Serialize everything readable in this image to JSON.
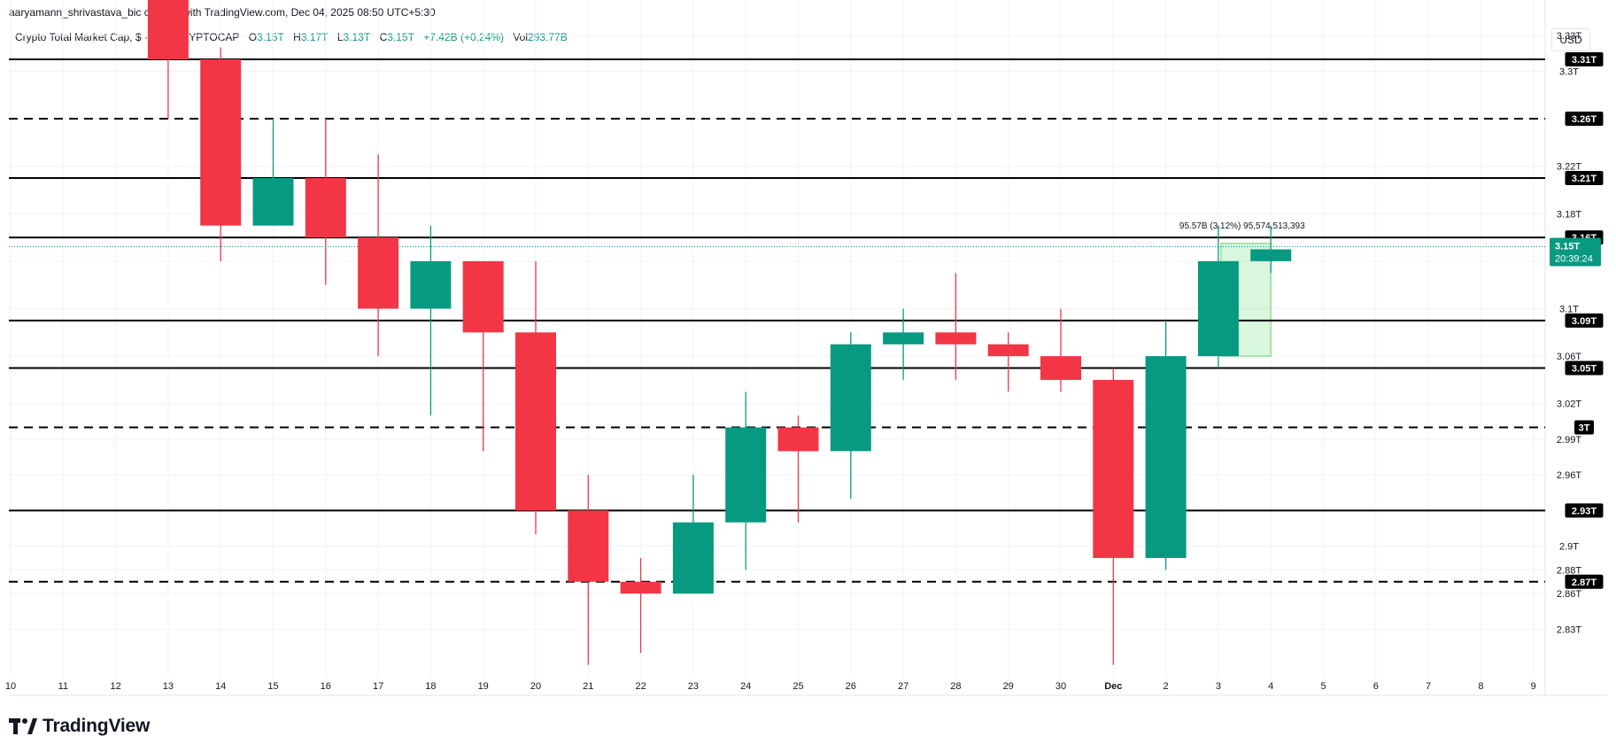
{
  "creator": "aaryamann_shrivastava_bic created with TradingView.com, Dec 04, 2025 08:50 UTC+5:30",
  "legend": {
    "symbol": "Crypto Total Market Cap, $ · 1D · CRYPTOCAP",
    "open_label": "O",
    "open": "3.15T",
    "high_label": "H",
    "high": "3.17T",
    "low_label": "L",
    "low": "3.13T",
    "close_label": "C",
    "close": "3.15T",
    "change": "+7.42B (+0.24%)",
    "vol_label": "Vol",
    "vol": "293.77B"
  },
  "currency": "USD",
  "brand": "TradingView",
  "colors": {
    "up": "#089981",
    "down": "#f23645",
    "level": "#000000",
    "grid": "#f0f3fa",
    "text": "#131722"
  },
  "chart_data": {
    "type": "candlestick",
    "ylim": [
      2.79,
      3.36
    ],
    "y_ticks": [
      {
        "v": 3.33,
        "label": "3.33T"
      },
      {
        "v": 3.3,
        "label": "3.3T"
      },
      {
        "v": 3.22,
        "label": "3.22T"
      },
      {
        "v": 3.18,
        "label": "3.18T"
      },
      {
        "v": 3.14,
        "label": "3.14T"
      },
      {
        "v": 3.1,
        "label": "3.1T"
      },
      {
        "v": 3.06,
        "label": "3.06T"
      },
      {
        "v": 3.02,
        "label": "3.02T"
      },
      {
        "v": 2.99,
        "label": "2.99T"
      },
      {
        "v": 2.96,
        "label": "2.96T"
      },
      {
        "v": 2.9,
        "label": "2.9T"
      },
      {
        "v": 2.88,
        "label": "2.88T"
      },
      {
        "v": 2.86,
        "label": "2.86T"
      },
      {
        "v": 2.83,
        "label": "2.83T"
      }
    ],
    "x_ticks": [
      "10",
      "11",
      "12",
      "13",
      "14",
      "15",
      "16",
      "17",
      "18",
      "19",
      "20",
      "21",
      "22",
      "23",
      "24",
      "25",
      "26",
      "27",
      "28",
      "29",
      "30",
      "Dec",
      "2",
      "3",
      "4",
      "5",
      "6",
      "7",
      "8",
      "9"
    ],
    "candles": [
      {
        "date": "13",
        "o": 3.37,
        "h": 3.37,
        "l": 3.26,
        "c": 3.31
      },
      {
        "date": "14",
        "o": 3.31,
        "h": 3.32,
        "l": 3.14,
        "c": 3.17
      },
      {
        "date": "15",
        "o": 3.17,
        "h": 3.26,
        "l": 3.17,
        "c": 3.21
      },
      {
        "date": "16",
        "o": 3.21,
        "h": 3.26,
        "l": 3.12,
        "c": 3.16
      },
      {
        "date": "17",
        "o": 3.16,
        "h": 3.23,
        "l": 3.06,
        "c": 3.1
      },
      {
        "date": "18",
        "o": 3.1,
        "h": 3.17,
        "l": 3.01,
        "c": 3.14
      },
      {
        "date": "19",
        "o": 3.14,
        "h": 3.14,
        "l": 2.98,
        "c": 3.08
      },
      {
        "date": "20",
        "o": 3.08,
        "h": 3.14,
        "l": 2.91,
        "c": 2.93
      },
      {
        "date": "21",
        "o": 2.93,
        "h": 2.96,
        "l": 2.8,
        "c": 2.87
      },
      {
        "date": "22",
        "o": 2.87,
        "h": 2.89,
        "l": 2.81,
        "c": 2.86
      },
      {
        "date": "23",
        "o": 2.86,
        "h": 2.96,
        "l": 2.86,
        "c": 2.92
      },
      {
        "date": "24",
        "o": 2.92,
        "h": 3.03,
        "l": 2.88,
        "c": 3.0
      },
      {
        "date": "25",
        "o": 3.0,
        "h": 3.01,
        "l": 2.92,
        "c": 2.98
      },
      {
        "date": "26",
        "o": 2.98,
        "h": 3.08,
        "l": 2.94,
        "c": 3.07
      },
      {
        "date": "27",
        "o": 3.07,
        "h": 3.1,
        "l": 3.04,
        "c": 3.08
      },
      {
        "date": "28",
        "o": 3.08,
        "h": 3.13,
        "l": 3.04,
        "c": 3.07
      },
      {
        "date": "29",
        "o": 3.07,
        "h": 3.08,
        "l": 3.03,
        "c": 3.06
      },
      {
        "date": "30",
        "o": 3.06,
        "h": 3.1,
        "l": 3.03,
        "c": 3.04
      },
      {
        "date": "Dec",
        "o": 3.04,
        "h": 3.05,
        "l": 2.8,
        "c": 2.89
      },
      {
        "date": "2",
        "o": 2.89,
        "h": 3.09,
        "l": 2.88,
        "c": 3.06
      },
      {
        "date": "3",
        "o": 3.06,
        "h": 3.17,
        "l": 3.05,
        "c": 3.14
      },
      {
        "date": "4",
        "o": 3.14,
        "h": 3.17,
        "l": 3.13,
        "c": 3.15
      }
    ],
    "levels": [
      {
        "v": 3.31,
        "label": "3.31T",
        "style": "solid"
      },
      {
        "v": 3.26,
        "label": "3.26T",
        "style": "dashed"
      },
      {
        "v": 3.21,
        "label": "3.21T",
        "style": "solid"
      },
      {
        "v": 3.16,
        "label": "3.16T",
        "style": "solid"
      },
      {
        "v": 3.09,
        "label": "3.09T",
        "style": "solid"
      },
      {
        "v": 3.05,
        "label": "3.05T",
        "style": "solid"
      },
      {
        "v": 3.0,
        "label": "3T",
        "style": "dashed"
      },
      {
        "v": 2.93,
        "label": "2.93T",
        "style": "solid"
      },
      {
        "v": 2.87,
        "label": "2.87T",
        "style": "dashed"
      }
    ],
    "last_price": {
      "v": 3.15,
      "label": "3.15T",
      "countdown": "20:39:24"
    },
    "measure": {
      "from_date": "3",
      "to_date": "4",
      "low": 3.06,
      "high": 3.155,
      "label": "95.57B (3.12%) 95,574,513,393"
    }
  }
}
